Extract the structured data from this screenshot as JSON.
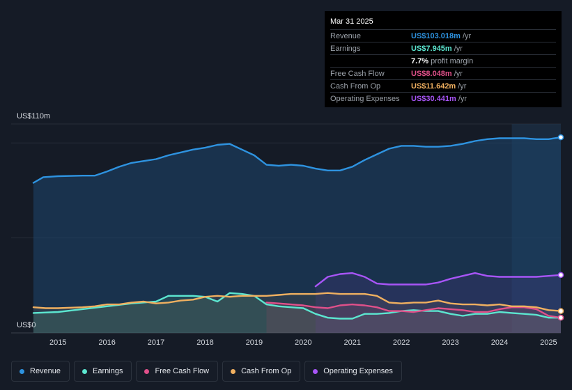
{
  "tooltip": {
    "date": "Mar 31 2025",
    "rows": [
      {
        "label": "Revenue",
        "value": "US$103.018m",
        "unit": "/yr",
        "color": "#2e93e0"
      },
      {
        "label": "Earnings",
        "value": "US$7.945m",
        "unit": "/yr",
        "color": "#5ce6d0"
      },
      {
        "label": "",
        "value": "7.7%",
        "unit": "profit margin",
        "color": "#ffffff"
      },
      {
        "label": "Free Cash Flow",
        "value": "US$8.048m",
        "unit": "/yr",
        "color": "#e0508a"
      },
      {
        "label": "Cash From Op",
        "value": "US$11.642m",
        "unit": "/yr",
        "color": "#f0b060"
      },
      {
        "label": "Operating Expenses",
        "value": "US$30.441m",
        "unit": "/yr",
        "color": "#a855f7"
      }
    ]
  },
  "legend": [
    {
      "label": "Revenue",
      "color": "#2e93e0"
    },
    {
      "label": "Earnings",
      "color": "#5ce6d0"
    },
    {
      "label": "Free Cash Flow",
      "color": "#e0508a"
    },
    {
      "label": "Cash From Op",
      "color": "#f0b060"
    },
    {
      "label": "Operating Expenses",
      "color": "#a855f7"
    }
  ],
  "chart_data": {
    "type": "area",
    "y_top_label": "US$110m",
    "y_bottom_label": "US$0",
    "ylim": [
      0,
      110
    ],
    "xlim": [
      2014.45,
      2025.25
    ],
    "x_ticks": [
      {
        "value": 2015,
        "label": "2015"
      },
      {
        "value": 2016,
        "label": "2016"
      },
      {
        "value": 2017,
        "label": "2017"
      },
      {
        "value": 2018,
        "label": "2018"
      },
      {
        "value": 2019,
        "label": "2019"
      },
      {
        "value": 2020,
        "label": "2020"
      },
      {
        "value": 2021,
        "label": "2021"
      },
      {
        "value": 2022,
        "label": "2022"
      },
      {
        "value": 2023,
        "label": "2023"
      },
      {
        "value": 2024,
        "label": "2024"
      },
      {
        "value": 2025,
        "label": "2025"
      }
    ],
    "forecast_start": 2024.25,
    "series": [
      {
        "name": "Revenue",
        "color": "#2e93e0",
        "x": [
          2014.5,
          2014.7,
          2015.0,
          2015.5,
          2015.75,
          2016.0,
          2016.25,
          2016.5,
          2016.75,
          2017.0,
          2017.25,
          2017.5,
          2017.75,
          2018.0,
          2018.25,
          2018.5,
          2018.75,
          2019.0,
          2019.25,
          2019.5,
          2019.75,
          2020.0,
          2020.25,
          2020.5,
          2020.75,
          2021.0,
          2021.25,
          2021.5,
          2021.75,
          2022.0,
          2022.25,
          2022.5,
          2022.75,
          2023.0,
          2023.25,
          2023.5,
          2023.75,
          2024.0,
          2024.25,
          2024.5,
          2024.75,
          2025.0,
          2025.25
        ],
        "y": [
          79,
          82,
          82.5,
          82.8,
          82.8,
          85,
          87.5,
          89.5,
          90.5,
          91.5,
          93.5,
          95,
          96.5,
          97.5,
          99,
          99.5,
          96.5,
          93.5,
          88.5,
          88,
          88.5,
          88,
          86.5,
          85.5,
          85.5,
          87.5,
          91,
          94,
          97,
          98.5,
          98.5,
          98,
          98,
          98.5,
          99.5,
          101,
          102,
          102.5,
          102.5,
          102.5,
          102,
          102,
          103
        ]
      },
      {
        "name": "Earnings",
        "color": "#5ce6d0",
        "x": [
          2014.5,
          2015.0,
          2015.5,
          2016.0,
          2016.5,
          2017.0,
          2017.25,
          2017.5,
          2017.75,
          2018.0,
          2018.25,
          2018.5,
          2018.75,
          2019.0,
          2019.25,
          2019.5,
          2019.75,
          2020.0,
          2020.25,
          2020.5,
          2020.75,
          2021.0,
          2021.25,
          2021.5,
          2021.75,
          2022.0,
          2022.25,
          2022.5,
          2022.75,
          2023.0,
          2023.25,
          2023.5,
          2023.75,
          2024.0,
          2024.25,
          2024.5,
          2024.75,
          2025.0,
          2025.25
        ],
        "y": [
          10.5,
          11,
          12.5,
          14,
          15.5,
          16.5,
          19.5,
          19.5,
          19.5,
          19,
          16.5,
          21,
          20.5,
          19.5,
          15,
          14,
          13.5,
          13,
          10,
          8,
          7.5,
          7.5,
          10,
          10,
          10.5,
          11.5,
          12,
          11.5,
          11.5,
          10,
          9,
          10,
          10,
          11,
          10.5,
          10,
          9.5,
          8,
          8
        ]
      },
      {
        "name": "Free Cash Flow",
        "color": "#e0508a",
        "x": [
          2019.25,
          2019.5,
          2019.75,
          2020.0,
          2020.25,
          2020.5,
          2020.75,
          2021.0,
          2021.25,
          2021.5,
          2021.75,
          2022.0,
          2022.25,
          2022.5,
          2022.75,
          2023.0,
          2023.25,
          2023.5,
          2023.75,
          2024.0,
          2024.25,
          2024.5,
          2024.75,
          2025.0,
          2025.25
        ],
        "y": [
          16,
          15.5,
          15,
          14.5,
          13.5,
          13,
          14.5,
          15,
          14.5,
          13.5,
          11.5,
          11.5,
          11,
          12,
          13,
          12.5,
          12,
          11,
          11,
          12.5,
          13.5,
          13.5,
          12.5,
          9,
          8
        ]
      },
      {
        "name": "Cash From Op",
        "color": "#f0b060",
        "x": [
          2014.5,
          2014.75,
          2015.0,
          2015.5,
          2015.75,
          2016.0,
          2016.25,
          2016.5,
          2016.75,
          2017.0,
          2017.25,
          2017.5,
          2017.75,
          2018.0,
          2018.25,
          2018.5,
          2018.75,
          2019.0,
          2019.25,
          2019.5,
          2019.75,
          2020.0,
          2020.25,
          2020.5,
          2020.75,
          2021.0,
          2021.25,
          2021.5,
          2021.75,
          2022.0,
          2022.25,
          2022.5,
          2022.75,
          2023.0,
          2023.25,
          2023.5,
          2023.75,
          2024.0,
          2024.25,
          2024.5,
          2024.75,
          2025.0,
          2025.25
        ],
        "y": [
          13.5,
          13,
          13,
          13.5,
          14,
          15,
          15,
          16,
          16.5,
          15.5,
          16,
          17,
          17.5,
          19,
          19.5,
          19,
          19.5,
          19.5,
          19.5,
          20,
          20.5,
          20.5,
          20.5,
          21,
          20.5,
          20.5,
          20.5,
          19.5,
          16,
          15.5,
          16,
          16,
          17,
          15.5,
          15,
          15,
          14.5,
          15,
          14,
          14,
          13.5,
          12,
          11.5
        ]
      },
      {
        "name": "Operating Expenses",
        "color": "#a855f7",
        "x": [
          2020.25,
          2020.5,
          2020.75,
          2021.0,
          2021.25,
          2021.5,
          2021.75,
          2022.0,
          2022.25,
          2022.5,
          2022.75,
          2023.0,
          2023.25,
          2023.5,
          2023.75,
          2024.0,
          2024.25,
          2024.5,
          2024.75,
          2025.0,
          2025.25
        ],
        "y": [
          24.5,
          29.5,
          31,
          31.5,
          29.5,
          26,
          25.5,
          25.5,
          25.5,
          25.5,
          26.5,
          28.5,
          30,
          31.5,
          30,
          29.5,
          29.5,
          29.5,
          29.5,
          30,
          30.5
        ]
      }
    ]
  }
}
